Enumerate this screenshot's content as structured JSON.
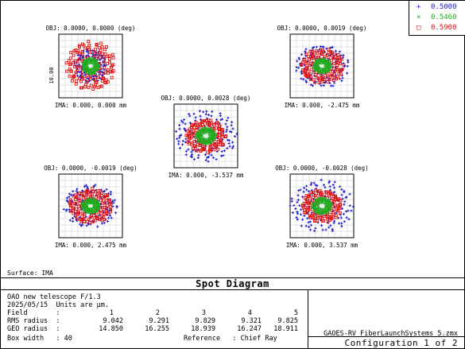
{
  "window": {
    "surface_label": "Surface: IMA",
    "title": "Spot Diagram"
  },
  "legend": [
    {
      "label": "0.5000",
      "color": "#1a1acc",
      "marker": "+"
    },
    {
      "label": "0.5460",
      "color": "#22aa22",
      "marker": "×"
    },
    {
      "label": "0.5900",
      "color": "#e01010",
      "marker": "□"
    }
  ],
  "info": {
    "line1": "OAO new telescope F/1.3",
    "line2": "2025/05/15  Units are µm.",
    "field_label": "Field       :",
    "rms_label": "RMS radius  :",
    "geo_label": "GEO radius  :",
    "box_label": "Box width   : 40",
    "reference": "Reference   : Chief Ray",
    "field_values": [
      "1",
      "2",
      "3",
      "4",
      "5"
    ],
    "rms_values": [
      "9.042",
      "9.291",
      "9.829",
      "9.321",
      "9.825"
    ],
    "geo_values": [
      "14.850",
      "16.255",
      "18.939",
      "16.247",
      "18.911"
    ]
  },
  "file": {
    "name": "GAOES-RV FiberLaunchSystems 5.zmx",
    "configuration": "Configuration 1 of 2"
  },
  "chart_data": {
    "type": "scatter",
    "title": "Spot Diagram",
    "box_width_um": 40,
    "axis_tick_label": "10.00",
    "wavelengths": [
      "0.5000",
      "0.5460",
      "0.5900"
    ],
    "colors": [
      "#1a1acc",
      "#22aa22",
      "#e01010"
    ],
    "fields": [
      {
        "field": "1",
        "obj": "OBJ: 0.0000, 0.0000 (deg)",
        "ima": "IMA: 0.000, 0.000 mm",
        "rms": 9.042,
        "geo": 14.85,
        "spot_radius_um": {
          "0.5000": 10.0,
          "0.5460": 5.0,
          "0.5900": 14.8
        },
        "center_offset_um": [
          0,
          0
        ],
        "spot_aspect": 1.0
      },
      {
        "field": "2",
        "obj": "OBJ: 0.0000, 0.0019 (deg)",
        "ima": "IMA: 0.000, -2.475 mm",
        "rms": 9.291,
        "geo": 16.255,
        "spot_radius_um": {
          "0.5000": 16.2,
          "0.5460": 5.5,
          "0.5900": 13.0
        },
        "center_offset_um": [
          0,
          0
        ],
        "spot_aspect": 1.25
      },
      {
        "field": "3",
        "obj": "OBJ: 0.0000, 0.0028 (deg)",
        "ima": "IMA: 0.000, -3.537 mm",
        "rms": 9.829,
        "geo": 18.939,
        "spot_radius_um": {
          "0.5000": 18.9,
          "0.5460": 6.0,
          "0.5900": 12.0
        },
        "center_offset_um": [
          0,
          0
        ],
        "spot_aspect": 1.2
      },
      {
        "field": "4",
        "obj": "OBJ: 0.0000, -0.0019 (deg)",
        "ima": "IMA: 0.000, 2.475 mm",
        "rms": 9.321,
        "geo": 16.247,
        "spot_radius_um": {
          "0.5000": 16.2,
          "0.5460": 5.5,
          "0.5900": 13.0
        },
        "center_offset_um": [
          0,
          0
        ],
        "spot_aspect": 1.25
      },
      {
        "field": "5",
        "obj": "OBJ: 0.0000, -0.0028 (deg)",
        "ima": "IMA: 0.000, 3.537 mm",
        "rms": 9.825,
        "geo": 18.911,
        "spot_radius_um": {
          "0.5000": 18.9,
          "0.5460": 6.0,
          "0.5900": 12.0
        },
        "center_offset_um": [
          0,
          0
        ],
        "spot_aspect": 1.2
      }
    ]
  }
}
